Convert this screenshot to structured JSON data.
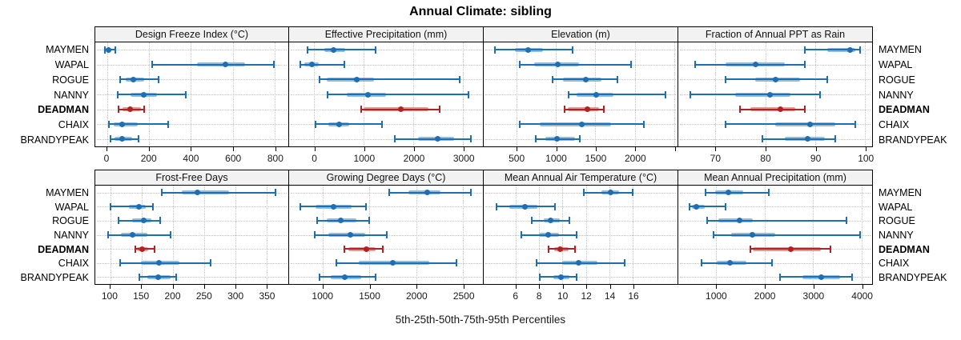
{
  "title": "Annual Climate: sibling",
  "caption": "5th-25th-50th-75th-95th Percentiles",
  "colors": {
    "series": "#1F6EB3",
    "series_light": "#8FBCDF",
    "highlight": "#B22222",
    "highlight_light": "#DE9B96",
    "strip_bg": "#F2F2F2",
    "grid": "#C8C8C8",
    "border": "#000000"
  },
  "chart_data": {
    "type": "scatter",
    "subtype": "dot-and-interval percentile plot (5th-25th-50th-75th-95th)",
    "title": "Annual Climate: sibling",
    "xlabel": "5th-25th-50th-75th-95th Percentiles",
    "legend_position": "none",
    "grid": "dotted",
    "percentiles": [
      "5th",
      "25th",
      "50th",
      "75th",
      "95th"
    ],
    "sites": [
      "MAYMEN",
      "WAPAL",
      "ROGUE",
      "NANNY",
      "DEADMAN",
      "CHAIX",
      "BRANDYPEAK"
    ],
    "highlight_site": "DEADMAN",
    "panels": [
      {
        "row": 0,
        "label": "Design Freeze Index (°C)",
        "xlim": [
          -57,
          865
        ],
        "ticks": [
          {
            "v": 0,
            "label": "0"
          },
          {
            "v": 200,
            "label": "200"
          },
          {
            "v": 400,
            "label": "400"
          },
          {
            "v": 600,
            "label": "600"
          },
          {
            "v": 800,
            "label": "800"
          }
        ],
        "values": {
          "MAYMEN": [
            -10,
            0,
            7,
            18,
            40
          ],
          "WAPAL": [
            215,
            430,
            565,
            660,
            795
          ],
          "ROGUE": [
            60,
            90,
            125,
            175,
            245
          ],
          "NANNY": [
            50,
            113,
            173,
            238,
            375
          ],
          "DEADMAN": [
            55,
            72,
            110,
            160,
            178
          ],
          "CHAIX": [
            8,
            30,
            72,
            145,
            290
          ],
          "BRANDYPEAK": [
            15,
            35,
            70,
            120,
            150
          ]
        }
      },
      {
        "row": 0,
        "label": "Effective Precipitation (mm)",
        "xlim": [
          -508,
          3398
        ],
        "ticks": [
          {
            "v": 0,
            "label": "0"
          },
          {
            "v": 1000,
            "label": "1000"
          },
          {
            "v": 2000,
            "label": "2000"
          },
          {
            "v": 3000,
            "label": "3000"
          }
        ],
        "values": {
          "MAYMEN": [
            -130,
            200,
            385,
            625,
            1240
          ],
          "WAPAL": [
            -285,
            -200,
            -50,
            90,
            600
          ],
          "ROGUE": [
            105,
            250,
            850,
            1210,
            2930
          ],
          "NANNY": [
            265,
            650,
            1075,
            1450,
            3100
          ],
          "DEADMAN": [
            945,
            1000,
            1750,
            2300,
            2520
          ],
          "CHAIX": [
            25,
            275,
            500,
            705,
            1360
          ],
          "BRANDYPEAK": [
            1630,
            2090,
            2480,
            2810,
            3155
          ]
        }
      },
      {
        "row": 0,
        "label": "Elevation (m)",
        "xlim": [
          84,
          2543
        ],
        "ticks": [
          {
            "v": 500,
            "label": "500"
          },
          {
            "v": 1000,
            "label": "1000"
          },
          {
            "v": 1500,
            "label": "1500"
          },
          {
            "v": 2000,
            "label": "2000"
          },
          {
            "v": 2500,
            "label": ""
          }
        ],
        "values": {
          "MAYMEN": [
            230,
            480,
            650,
            835,
            1215
          ],
          "WAPAL": [
            545,
            720,
            1020,
            1290,
            1950
          ],
          "ROGUE": [
            960,
            1090,
            1380,
            1575,
            1780
          ],
          "NANNY": [
            1165,
            1260,
            1515,
            1730,
            2390
          ],
          "DEADMAN": [
            1115,
            1155,
            1400,
            1545,
            1610
          ],
          "CHAIX": [
            545,
            800,
            1330,
            1695,
            2115
          ],
          "BRANDYPEAK": [
            740,
            870,
            1015,
            1240,
            1300
          ]
        }
      },
      {
        "row": 0,
        "label": "Fraction of Annual PPT as Rain",
        "xlim": [
          62.6,
          101.4
        ],
        "ticks": [
          {
            "v": 70,
            "label": "70"
          },
          {
            "v": 80,
            "label": "80"
          },
          {
            "v": 90,
            "label": "90"
          },
          {
            "v": 100,
            "label": "100"
          }
        ],
        "values": {
          "MAYMEN": [
            88,
            92.5,
            97,
            98,
            99
          ],
          "WAPAL": [
            66,
            72,
            78,
            84,
            88
          ],
          "ROGUE": [
            72,
            78,
            82,
            87,
            92.5
          ],
          "NANNY": [
            65,
            74,
            81,
            85,
            91
          ],
          "DEADMAN": [
            75,
            77,
            83,
            86,
            88
          ],
          "CHAIX": [
            72,
            82,
            89,
            94,
            98
          ],
          "BRANDYPEAK": [
            79.5,
            84,
            88.5,
            92,
            94
          ]
        }
      },
      {
        "row": 1,
        "label": "Frost-Free Days",
        "xlim": [
          76,
          385
        ],
        "ticks": [
          {
            "v": 100,
            "label": "100"
          },
          {
            "v": 150,
            "label": "150"
          },
          {
            "v": 200,
            "label": "200"
          },
          {
            "v": 250,
            "label": "250"
          },
          {
            "v": 300,
            "label": "300"
          },
          {
            "v": 350,
            "label": "350"
          }
        ],
        "values": {
          "MAYMEN": [
            183,
            214,
            240,
            290,
            365
          ],
          "WAPAL": [
            101,
            130,
            146,
            157,
            168
          ],
          "ROGUE": [
            113,
            135,
            154,
            166,
            180
          ],
          "NANNY": [
            96,
            117,
            135,
            159,
            196
          ],
          "DEADMAN": [
            140,
            143,
            151,
            161,
            171
          ],
          "CHAIX": [
            116,
            149,
            178,
            211,
            261
          ],
          "BRANDYPEAK": [
            146,
            159,
            177,
            196,
            206
          ]
        }
      },
      {
        "row": 1,
        "label": "Growing Degree Days (°C)",
        "xlim": [
          645,
          2711
        ],
        "ticks": [
          {
            "v": 1000,
            "label": "1000"
          },
          {
            "v": 1500,
            "label": "1500"
          },
          {
            "v": 2000,
            "label": "2000"
          },
          {
            "v": 2500,
            "label": "2500"
          }
        ],
        "values": {
          "MAYMEN": [
            1710,
            1920,
            2115,
            2260,
            2585
          ],
          "WAPAL": [
            765,
            930,
            1115,
            1315,
            1465
          ],
          "ROGUE": [
            945,
            1050,
            1195,
            1365,
            1495
          ],
          "NANNY": [
            920,
            1060,
            1295,
            1455,
            1685
          ],
          "DEADMAN": [
            1230,
            1275,
            1470,
            1570,
            1640
          ],
          "CHAIX": [
            1145,
            1385,
            1750,
            2135,
            2430
          ],
          "BRANDYPEAK": [
            970,
            1090,
            1235,
            1415,
            1570
          ]
        }
      },
      {
        "row": 1,
        "label": "Mean Annual Air Temperature (°C)",
        "xlim": [
          3.3,
          19.8
        ],
        "ticks": [
          {
            "v": 6,
            "label": "6"
          },
          {
            "v": 8,
            "label": "8"
          },
          {
            "v": 10,
            "label": "10"
          },
          {
            "v": 12,
            "label": "12"
          },
          {
            "v": 14,
            "label": "14"
          },
          {
            "v": 16,
            "label": "16"
          }
        ],
        "values": {
          "MAYMEN": [
            11.8,
            13.3,
            14.1,
            14.8,
            16.0
          ],
          "WAPAL": [
            4.4,
            5.5,
            6.8,
            7.9,
            9.4
          ],
          "ROGUE": [
            7.4,
            8.4,
            9.0,
            9.8,
            10.6
          ],
          "NANNY": [
            6.5,
            8.0,
            8.8,
            9.7,
            11.2
          ],
          "DEADMAN": [
            8.8,
            9.3,
            9.8,
            10.5,
            11.1
          ],
          "CHAIX": [
            7.8,
            10.0,
            11.4,
            13.0,
            15.3
          ],
          "BRANDYPEAK": [
            8.1,
            9.2,
            9.9,
            10.6,
            11.2
          ]
        }
      },
      {
        "row": 1,
        "label": "Mean Annual Precipitation (mm)",
        "xlim": [
          220,
          4220
        ],
        "ticks": [
          {
            "v": 1000,
            "label": "1000"
          },
          {
            "v": 2000,
            "label": "2000"
          },
          {
            "v": 3000,
            "label": "3000"
          },
          {
            "v": 4000,
            "label": "4000"
          }
        ],
        "values": {
          "MAYMEN": [
            790,
            985,
            1245,
            1560,
            2080
          ],
          "WAPAL": [
            450,
            500,
            600,
            760,
            1200
          ],
          "ROGUE": [
            810,
            1040,
            1490,
            1765,
            3685
          ],
          "NANNY": [
            955,
            1310,
            1750,
            2215,
            3980
          ],
          "DEADMAN": [
            1710,
            1750,
            2545,
            3155,
            3355
          ],
          "CHAIX": [
            700,
            1010,
            1285,
            1625,
            2160
          ],
          "BRANDYPEAK": [
            2325,
            2775,
            3175,
            3560,
            3805
          ]
        }
      }
    ]
  }
}
